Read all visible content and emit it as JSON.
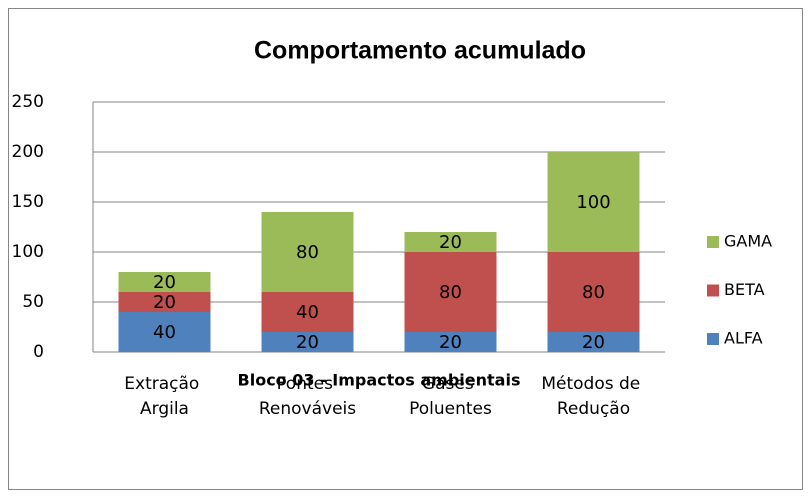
{
  "chart_data": {
    "type": "stacked_bar",
    "title": "Comportamento acumulado",
    "x_label": "Bloco 03 - Impactos ambientais",
    "categories": [
      "Extração Argila",
      "Fontes Renováveis",
      "Gases Poluentes",
      "Métodos de Redução"
    ],
    "series": [
      {
        "name": "ALFA",
        "color": "#4f81bd",
        "values": [
          40,
          20,
          20,
          20
        ]
      },
      {
        "name": "BETA",
        "color": "#c0504d",
        "values": [
          20,
          40,
          80,
          80
        ]
      },
      {
        "name": "GAMA",
        "color": "#9bbb59",
        "values": [
          20,
          80,
          20,
          100
        ]
      }
    ],
    "ylim": [
      0,
      250
    ],
    "yticks": [
      0,
      50,
      100,
      150,
      200,
      250
    ],
    "grid": true,
    "legend": "right"
  }
}
